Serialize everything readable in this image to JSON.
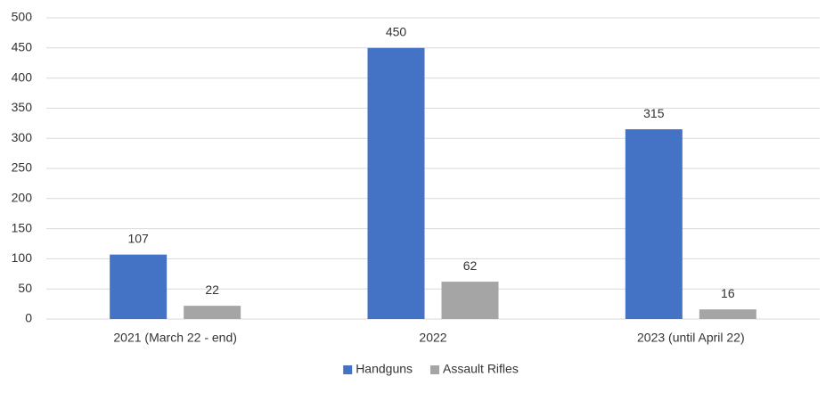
{
  "chart_data": {
    "type": "bar",
    "categories": [
      "2021 (March 22 - end)",
      "2022",
      "2023 (until April 22)"
    ],
    "series": [
      {
        "name": "Handguns",
        "color": "#4472c4",
        "values": [
          107,
          450,
          315
        ]
      },
      {
        "name": "Assault Rifles",
        "color": "#a5a5a5",
        "values": [
          22,
          62,
          16
        ]
      }
    ],
    "ylim": [
      0,
      500
    ],
    "yticks": [
      0,
      50,
      100,
      150,
      200,
      250,
      300,
      350,
      400,
      450,
      500
    ],
    "grid": true,
    "legend": "bottom"
  }
}
